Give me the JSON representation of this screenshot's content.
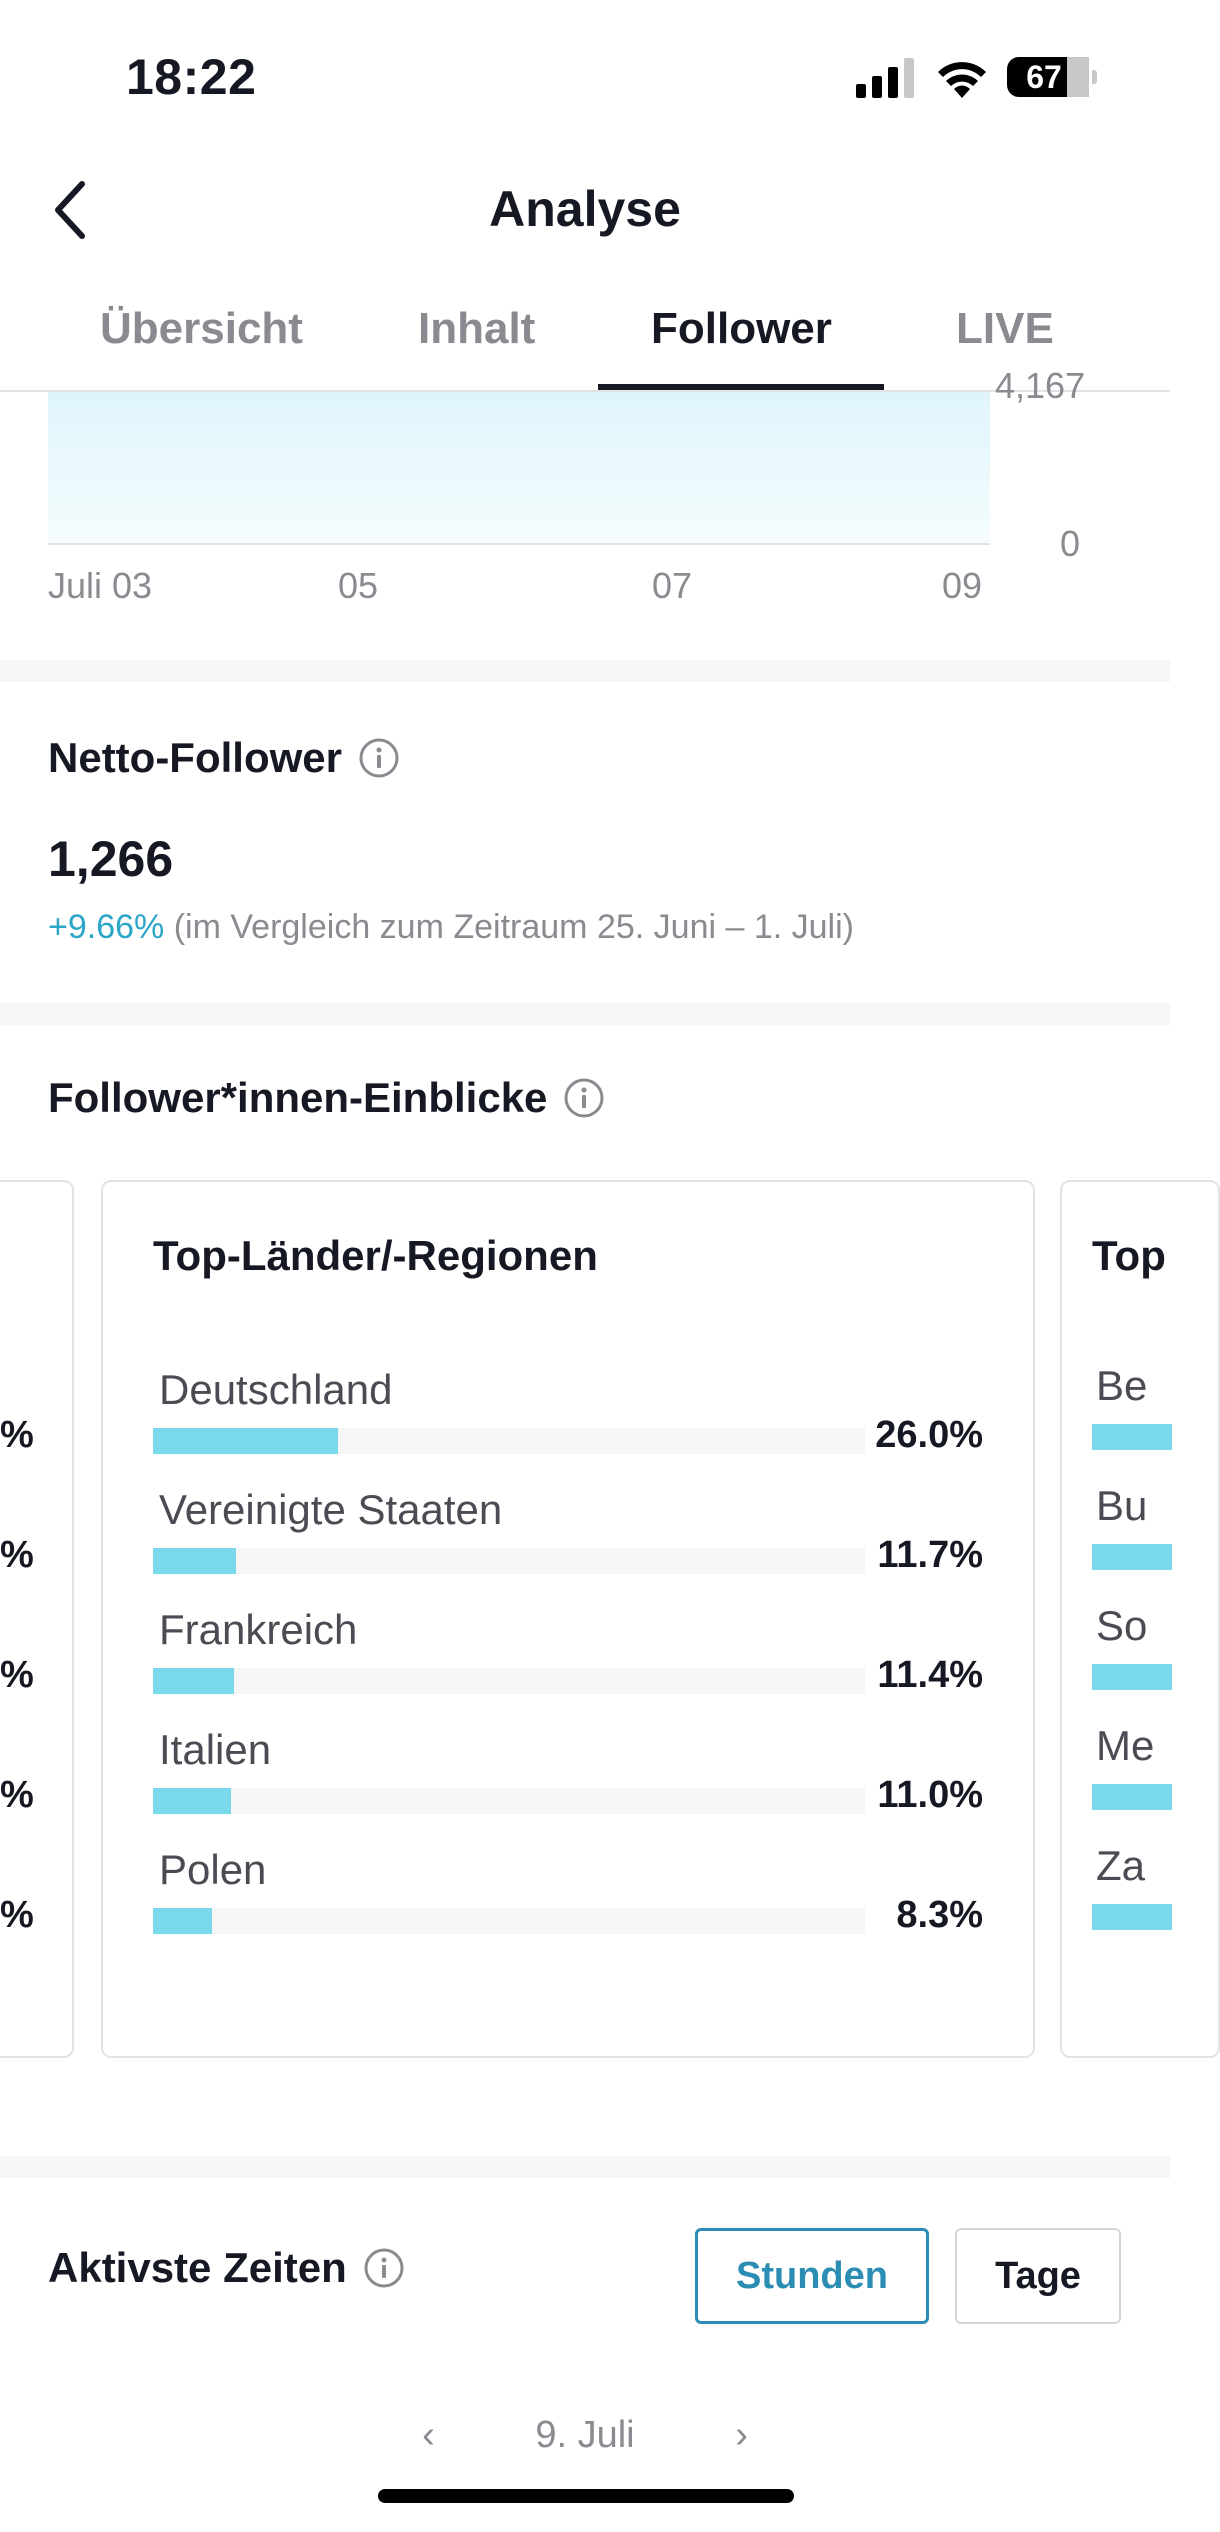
{
  "status_bar": {
    "time": "18:22",
    "battery": "67"
  },
  "header": {
    "title": "Analyse"
  },
  "tabs": [
    {
      "label": "Übersicht",
      "active": false
    },
    {
      "label": "Inhalt",
      "active": false
    },
    {
      "label": "Follower",
      "active": true
    },
    {
      "label": "LIVE",
      "active": false
    }
  ],
  "chart_data": {
    "type": "area",
    "x_ticks": [
      "Juli 03",
      "05",
      "07",
      "09"
    ],
    "y_ticks": [
      "4,167",
      "0"
    ],
    "ylim": [
      0,
      4167
    ]
  },
  "net_followers": {
    "title": "Netto-Follower",
    "value": "1,266",
    "change_pct": "+9.66%",
    "comparison": "(im Vergleich zum Zeitraum 25. Juni – 1. Juli)"
  },
  "insights": {
    "title": "Follower*innen-Einblicke",
    "left_card_percent_suffix": "%",
    "countries_card": {
      "title": "Top-Länder/-Regionen",
      "rows": [
        {
          "label": "Deutschland",
          "percent": "26.0%",
          "value": 26.0
        },
        {
          "label": "Vereinigte Staaten",
          "percent": "11.7%",
          "value": 11.7
        },
        {
          "label": "Frankreich",
          "percent": "11.4%",
          "value": 11.4
        },
        {
          "label": "Italien",
          "percent": "11.0%",
          "value": 11.0
        },
        {
          "label": "Polen",
          "percent": "8.3%",
          "value": 8.3
        }
      ]
    },
    "right_card": {
      "title_fragment": "Top",
      "row_fragments": [
        "Be",
        "Bu",
        "So",
        "Me",
        "Za"
      ]
    }
  },
  "active_times": {
    "title": "Aktivste Zeiten",
    "hours_label": "Stunden",
    "days_label": "Tage",
    "date_label": "9. Juli"
  },
  "colors": {
    "accent": "#2b8db3",
    "bar": "#7ad9ea",
    "positive": "#2ba6c8"
  }
}
